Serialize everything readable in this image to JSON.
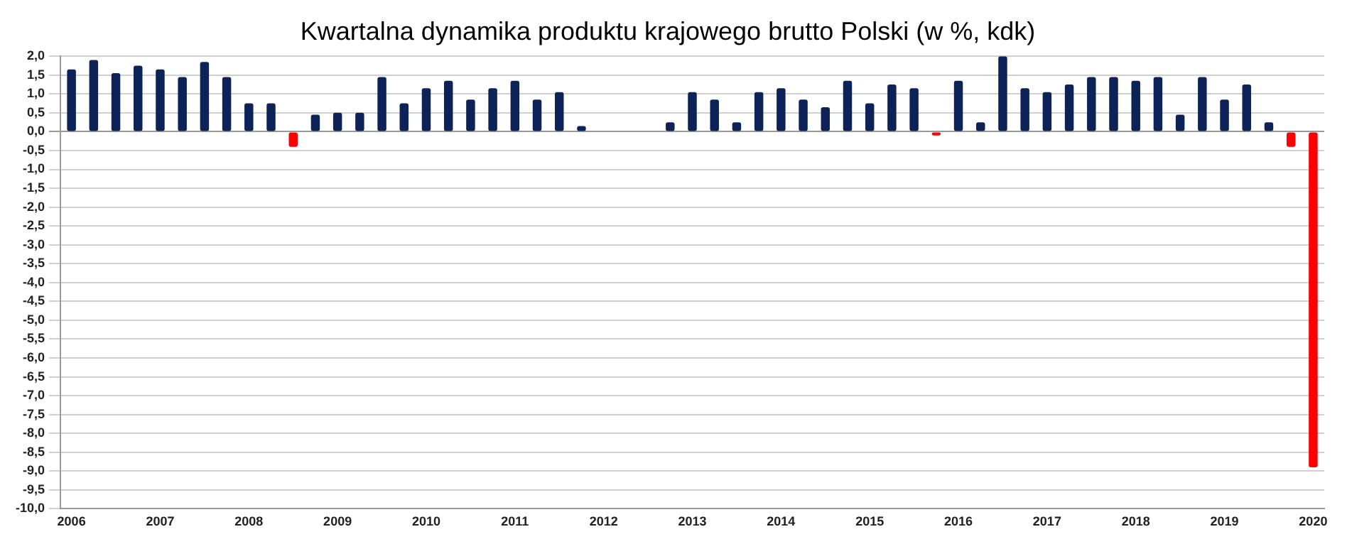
{
  "chart_data": {
    "type": "bar",
    "title": "Kwartalna dynamika produktu krajowego brutto Polski (w %, kdk)",
    "categories": [
      "2006",
      null,
      null,
      null,
      "2007",
      null,
      null,
      null,
      "2008",
      null,
      null,
      null,
      "2009",
      null,
      null,
      null,
      "2010",
      null,
      null,
      null,
      "2011",
      null,
      null,
      null,
      "2012",
      null,
      null,
      null,
      "2013",
      null,
      null,
      null,
      "2014",
      null,
      null,
      null,
      "2015",
      null,
      null,
      null,
      "2016",
      null,
      null,
      null,
      "2017",
      null,
      null,
      null,
      "2018",
      null,
      null,
      null,
      "2019",
      null,
      null,
      null,
      "2020"
    ],
    "values": [
      1.65,
      1.9,
      1.55,
      1.75,
      1.65,
      1.45,
      1.85,
      1.45,
      0.75,
      0.75,
      -0.4,
      0.45,
      0.5,
      0.5,
      1.45,
      0.75,
      1.15,
      1.35,
      0.85,
      1.15,
      1.35,
      0.85,
      1.05,
      0.15,
      0,
      0,
      0,
      0.25,
      1.05,
      0.85,
      0.25,
      1.05,
      1.15,
      0.85,
      0.65,
      1.35,
      0.75,
      1.25,
      1.15,
      -0.1,
      1.35,
      0.25,
      2.0,
      1.15,
      1.05,
      1.25,
      1.45,
      1.45,
      1.35,
      1.45,
      0.45,
      1.45,
      0.85,
      1.25,
      0.25,
      -0.4,
      -8.9
    ],
    "colors": [
      "#0d2257",
      "#0d2257",
      "#0d2257",
      "#0d2257",
      "#0d2257",
      "#0d2257",
      "#0d2257",
      "#0d2257",
      "#0d2257",
      "#0d2257",
      "#ff0000",
      "#0d2257",
      "#0d2257",
      "#0d2257",
      "#0d2257",
      "#0d2257",
      "#0d2257",
      "#0d2257",
      "#0d2257",
      "#0d2257",
      "#0d2257",
      "#0d2257",
      "#0d2257",
      "#0d2257",
      "#0d2257",
      "#0d2257",
      "#0d2257",
      "#0d2257",
      "#0d2257",
      "#0d2257",
      "#0d2257",
      "#0d2257",
      "#0d2257",
      "#0d2257",
      "#0d2257",
      "#0d2257",
      "#0d2257",
      "#0d2257",
      "#0d2257",
      "#ff0000",
      "#0d2257",
      "#0d2257",
      "#0d2257",
      "#0d2257",
      "#0d2257",
      "#0d2257",
      "#0d2257",
      "#0d2257",
      "#0d2257",
      "#0d2257",
      "#0d2257",
      "#0d2257",
      "#0d2257",
      "#0d2257",
      "#0d2257",
      "#ff0000",
      "#ff0000"
    ],
    "ylim": [
      -10,
      2
    ],
    "yticks": [
      {
        "value": -10,
        "label": "-10,0"
      },
      {
        "value": -9.5,
        "label": "-9,5"
      },
      {
        "value": -9,
        "label": "-9,0"
      },
      {
        "value": -8.5,
        "label": "-8,5"
      },
      {
        "value": -8,
        "label": "-8,0"
      },
      {
        "value": -7.5,
        "label": "-7,5"
      },
      {
        "value": -7,
        "label": "-7,0"
      },
      {
        "value": -6.5,
        "label": "-6,5"
      },
      {
        "value": -6,
        "label": "-6,0"
      },
      {
        "value": -5.5,
        "label": "-5,5"
      },
      {
        "value": -5,
        "label": "-5,0"
      },
      {
        "value": -4.5,
        "label": "-4,5"
      },
      {
        "value": -4,
        "label": "-4,0"
      },
      {
        "value": -3.5,
        "label": "-3,5"
      },
      {
        "value": -3,
        "label": "-3,0"
      },
      {
        "value": -2.5,
        "label": "-2,5"
      },
      {
        "value": -2,
        "label": "-2,0"
      },
      {
        "value": -1.5,
        "label": "-1,5"
      },
      {
        "value": -1,
        "label": "-1,0"
      },
      {
        "value": -0.5,
        "label": "-0,5"
      },
      {
        "value": 0,
        "label": "0,0"
      },
      {
        "value": 0.5,
        "label": "0,5"
      },
      {
        "value": 1,
        "label": "1,0"
      },
      {
        "value": 1.5,
        "label": "1,5"
      },
      {
        "value": 2,
        "label": "2,0"
      }
    ],
    "grid": "y",
    "legend": false
  }
}
